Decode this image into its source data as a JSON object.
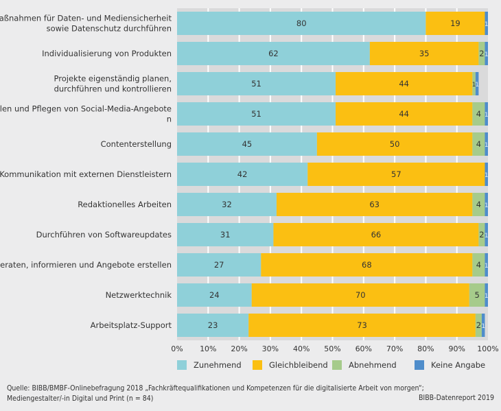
{
  "chart_data": {
    "type": "bar",
    "orientation": "horizontal",
    "stacked": true,
    "categories": [
      "Maßnahmen für Daten- und Mediensicherheit sowie Datenschutz durchführen",
      "Individualisierung von Produkten",
      "Projekte eigenständig planen, durchführen und kontrollieren",
      "Erstellen und Pflegen von Social-Media-Angeboten",
      "Contenterstellung",
      "Kommunikation mit externen Dienstleistern",
      "Redaktionelles Arbeiten",
      "Durchführen von Softwareupdates",
      "Beraten, informieren und Angebote erstellen",
      "Netzwerktechnik",
      "Arbeitsplatz-Support"
    ],
    "series": [
      {
        "name": "Zunehmend",
        "color": "#8fd0d9",
        "values": [
          80,
          62,
          51,
          51,
          45,
          42,
          32,
          31,
          27,
          24,
          23
        ]
      },
      {
        "name": "Gleichbleibend",
        "color": "#fbbf12",
        "values": [
          19,
          35,
          44,
          44,
          50,
          57,
          63,
          66,
          68,
          70,
          73
        ]
      },
      {
        "name": "Abnehmend",
        "color": "#a6cb8b",
        "values": [
          0,
          2,
          1,
          4,
          4,
          0,
          4,
          2,
          4,
          5,
          2
        ]
      },
      {
        "name": "Keine Angabe",
        "color": "#4f8dcb",
        "values": [
          1,
          1,
          1,
          1,
          1,
          1,
          1,
          1,
          1,
          1,
          1
        ]
      }
    ],
    "x_ticks": [
      "0%",
      "10%",
      "20%",
      "30%",
      "40%",
      "50%",
      "60%",
      "70%",
      "80%",
      "90%",
      "100%"
    ],
    "xlim": [
      0,
      100
    ],
    "grid": true,
    "legend": "bottom"
  },
  "footer": {
    "source_line1": "Quelle: BIBB/BMBF-Onlinebefragung 2018 „Fachkräftequalifikationen und Kompetenzen für die digitalisierte Arbeit von morgen“;",
    "source_line2": "Mediengestalter/-in Digital und Print (n = 84)",
    "brand": "BIBB-Datenreport 2019"
  }
}
